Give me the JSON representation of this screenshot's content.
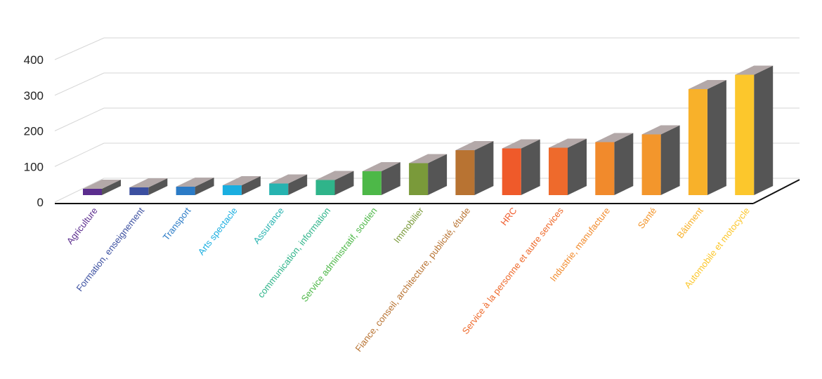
{
  "chart_data": {
    "type": "bar",
    "title": "",
    "xlabel": "",
    "ylabel": "",
    "ylim": [
      0,
      400
    ],
    "yticks": [
      "0",
      "100",
      "200",
      "300",
      "400"
    ],
    "grid": true,
    "legend": "none",
    "categories": [
      "Agriculture",
      "Formation, enseignement",
      "Transport",
      "Arts spectacle",
      "Assurance",
      "communication, information",
      "Service administratif, soutien",
      "Immobilier",
      "Fiance, conseil, architecture, publicité, étude",
      "HRC",
      "Service à la personne et autre services",
      "Industrie, manufacture",
      "Santé",
      "Bâtiment",
      "Automobile et motocycle"
    ],
    "values": [
      18,
      22,
      24,
      28,
      33,
      43,
      68,
      91,
      128,
      133,
      135,
      151,
      173,
      302,
      343
    ],
    "colors": [
      "#5b2d8e",
      "#3b4fa0",
      "#2b7bc6",
      "#1aaee0",
      "#26b3b0",
      "#2fb48a",
      "#4db848",
      "#7a9a3a",
      "#b87332",
      "#ef5a2a",
      "#ee6a2c",
      "#f18a2c",
      "#f3962c",
      "#f8b12a",
      "#fcc72c"
    ],
    "side_color": "#555555",
    "top_color": "#b3a8a8"
  }
}
